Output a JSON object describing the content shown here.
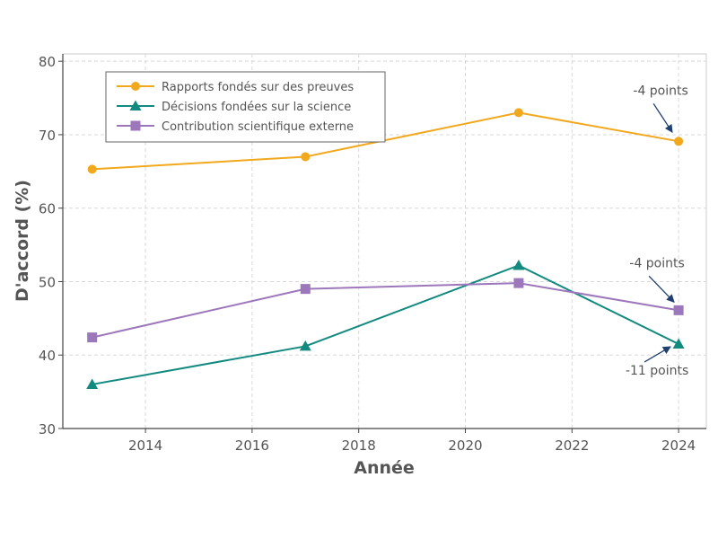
{
  "chart_data": {
    "type": "line",
    "title": "",
    "xlabel": "Année",
    "ylabel": "D'accord (%)",
    "xlim": [
      2012.45,
      2024.52
    ],
    "ylim": [
      30,
      81
    ],
    "xticks": [
      2014,
      2016,
      2018,
      2020,
      2022,
      2024
    ],
    "yticks": [
      30,
      40,
      50,
      60,
      70,
      80
    ],
    "grid": true,
    "legend_position": "top-left",
    "x": [
      2013,
      2017,
      2021,
      2024
    ],
    "series": [
      {
        "name": "Rapports fondés sur des preuves",
        "marker": "circle",
        "color": "#f2a81d",
        "values": [
          65.3,
          67.0,
          73.0,
          69.1
        ]
      },
      {
        "name": "Décisions fondées sur la science",
        "marker": "triangle",
        "color": "#138a80",
        "values": [
          36.0,
          41.2,
          52.2,
          41.5
        ]
      },
      {
        "name": "Contribution scientifique externe",
        "marker": "square",
        "color": "#9d77bb",
        "values": [
          42.4,
          49.0,
          49.8,
          46.1
        ]
      }
    ],
    "annotations": [
      {
        "text": "-4 points",
        "series": 0,
        "x": 2024
      },
      {
        "text": "-4 points",
        "series": 2,
        "x": 2024
      },
      {
        "text": "-11 points",
        "series": 1,
        "x": 2024
      }
    ],
    "annotation_color": "#1f3f6e"
  }
}
